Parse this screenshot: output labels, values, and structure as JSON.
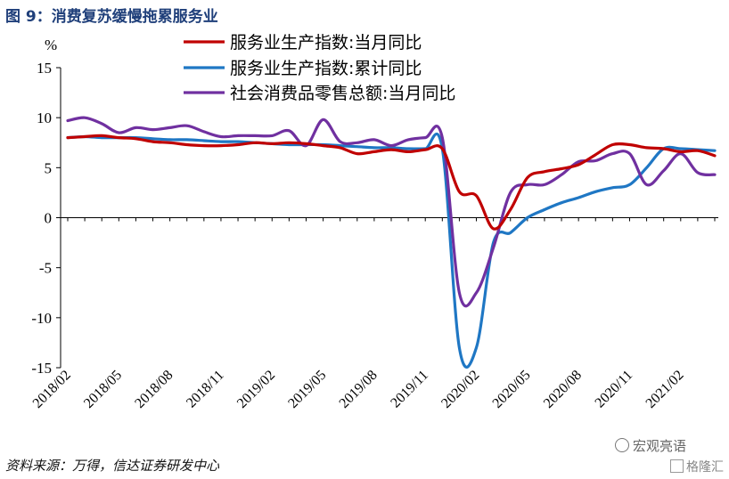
{
  "figure_title": "图 9：消费复苏缓慢拖累服务业",
  "source_note": "资料来源：万得，信达证券研发中心",
  "watermark_left": "宏观亮语",
  "watermark_right": "格隆汇",
  "chart_data": {
    "type": "line",
    "ylabel": "%",
    "ylim": [
      -15,
      15
    ],
    "yticks": [
      -15,
      -10,
      -5,
      0,
      5,
      10,
      15
    ],
    "x": [
      "2018/02",
      "2018/03",
      "2018/04",
      "2018/05",
      "2018/06",
      "2018/07",
      "2018/08",
      "2018/09",
      "2018/10",
      "2018/11",
      "2018/12",
      "2019/01",
      "2019/02",
      "2019/03",
      "2019/04",
      "2019/05",
      "2019/06",
      "2019/07",
      "2019/08",
      "2019/09",
      "2019/10",
      "2019/11",
      "2019/12",
      "2020/01",
      "2020/02",
      "2020/03",
      "2020/04",
      "2020/05",
      "2020/06",
      "2020/07",
      "2020/08",
      "2020/09",
      "2020/10",
      "2020/11",
      "2020/12",
      "2021/01",
      "2021/02",
      "2021/03",
      "2021/04"
    ],
    "xtick_labels": [
      "2018/02",
      "2018/05",
      "2018/08",
      "2018/11",
      "2019/02",
      "2019/05",
      "2019/08",
      "2019/11",
      "2020/02",
      "2020/05",
      "2020/08",
      "2020/11",
      "2021/02"
    ],
    "legend_position": "top",
    "series": [
      {
        "name": "服务业生产指数:当月同比",
        "color": "#c00000",
        "values": [
          8.0,
          8.1,
          8.2,
          8.0,
          7.9,
          7.6,
          7.5,
          7.3,
          7.2,
          7.2,
          7.3,
          7.5,
          7.4,
          7.5,
          7.4,
          7.2,
          7.0,
          6.4,
          6.6,
          6.8,
          6.6,
          6.8,
          6.9,
          2.6,
          2.2,
          -1.1,
          0.8,
          4.0,
          4.6,
          4.9,
          5.3,
          6.3,
          7.3,
          7.3,
          7.0,
          6.9,
          6.6,
          6.7,
          6.2
        ]
      },
      {
        "name": "服务业生产指数:累计同比",
        "color": "#1f77c4",
        "values": [
          8.0,
          8.1,
          8.0,
          8.0,
          8.0,
          7.9,
          7.8,
          7.8,
          7.7,
          7.6,
          7.6,
          7.5,
          7.4,
          7.3,
          7.3,
          7.3,
          7.2,
          7.1,
          7.0,
          7.0,
          6.9,
          6.9,
          6.9,
          -13.0,
          -13.0,
          -2.5,
          -1.5,
          0.0,
          0.8,
          1.5,
          2.0,
          2.6,
          3.0,
          3.3,
          5.0,
          6.9,
          6.9,
          6.8,
          6.7
        ]
      },
      {
        "name": "社会消费品零售总额:当月同比",
        "color": "#7030a0",
        "values": [
          9.7,
          10.0,
          9.4,
          8.5,
          9.0,
          8.8,
          9.0,
          9.2,
          8.6,
          8.1,
          8.2,
          8.2,
          8.2,
          8.7,
          7.2,
          9.8,
          7.6,
          7.5,
          7.8,
          7.2,
          7.8,
          8.0,
          8.0,
          -7.5,
          -7.5,
          -3.0,
          2.5,
          3.3,
          3.3,
          4.3,
          5.6,
          5.7,
          6.4,
          6.4,
          3.3,
          4.7,
          6.4,
          4.5,
          4.3
        ]
      }
    ]
  }
}
